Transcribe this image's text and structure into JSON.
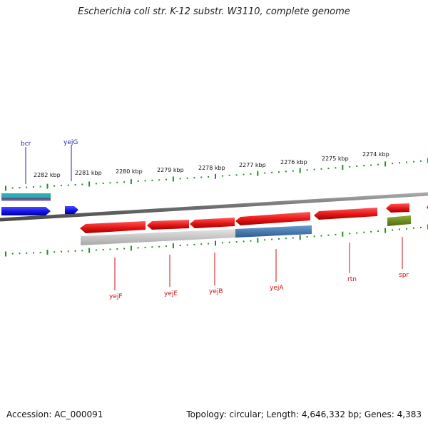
{
  "title": "Escherichia coli str. K-12 substr. W3110, complete genome",
  "footer": {
    "accession": "Accession: AC_000091",
    "summary": "Topology: circular; Length: 4,646,332 bp; Genes: 4,383"
  },
  "colors": {
    "backbone": "#7a7a7a",
    "tick": "#2a8a2a",
    "forward_gene": "#1414e6",
    "reverse_gene": "#e61414",
    "forward_label": "#2020c0",
    "reverse_label": "#cc1111",
    "protein_track": "#3a6ea8",
    "gray_track": "#bdbdbd",
    "cyan_track": "#2ab0b0",
    "olive_track": "#6a8a20"
  },
  "scale_labels": [
    "2282 kbp",
    "2281 kbp",
    "2280 kbp",
    "2279 kbp",
    "2278 kbp",
    "2277 kbp",
    "2276 kbp",
    "2275 kbp",
    "2274 kbp"
  ],
  "forward_genes": [
    "bcr",
    "yejG"
  ],
  "reverse_genes": [
    "yejF",
    "yejE",
    "yejB",
    "yejA",
    "rtn",
    "spr"
  ]
}
